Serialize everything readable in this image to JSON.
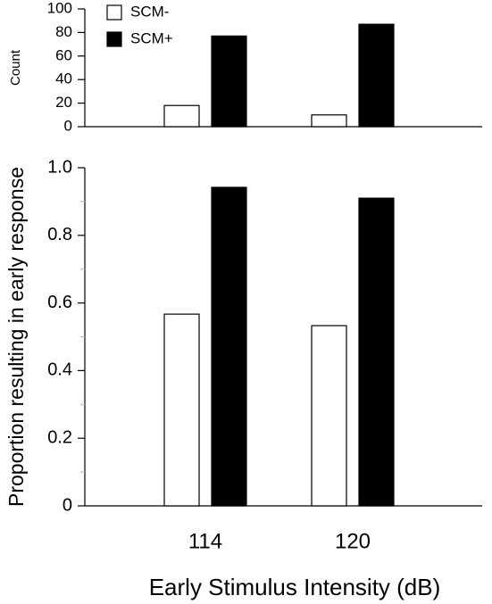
{
  "chart_data": [
    {
      "type": "bar",
      "ylabel": "Count",
      "categories": [
        "114",
        "120"
      ],
      "series": [
        {
          "name": "SCM-",
          "color": "#ffffff",
          "values": [
            18,
            10
          ]
        },
        {
          "name": "SCM+",
          "color": "#000000",
          "values": [
            77,
            87
          ]
        }
      ],
      "ylim": [
        0,
        100
      ],
      "yticks": [
        0,
        20,
        40,
        60,
        80,
        100
      ],
      "legend": "top-left"
    },
    {
      "type": "bar",
      "ylabel": "Proportion resulting in early response",
      "xlabel": "Early Stimulus Intensity (dB)",
      "categories": [
        "114",
        "120"
      ],
      "series": [
        {
          "name": "SCM-",
          "color": "#ffffff",
          "values": [
            0.567,
            0.533
          ]
        },
        {
          "name": "SCM+",
          "color": "#000000",
          "values": [
            0.942,
            0.91
          ]
        }
      ],
      "ylim": [
        0,
        1
      ],
      "yticks": [
        0,
        0.2,
        0.4,
        0.6,
        0.8,
        {
          "value": 1,
          "label": "1.0"
        }
      ],
      "minor_yticks": [
        0.1,
        0.3,
        0.5,
        0.7,
        0.9
      ]
    }
  ]
}
